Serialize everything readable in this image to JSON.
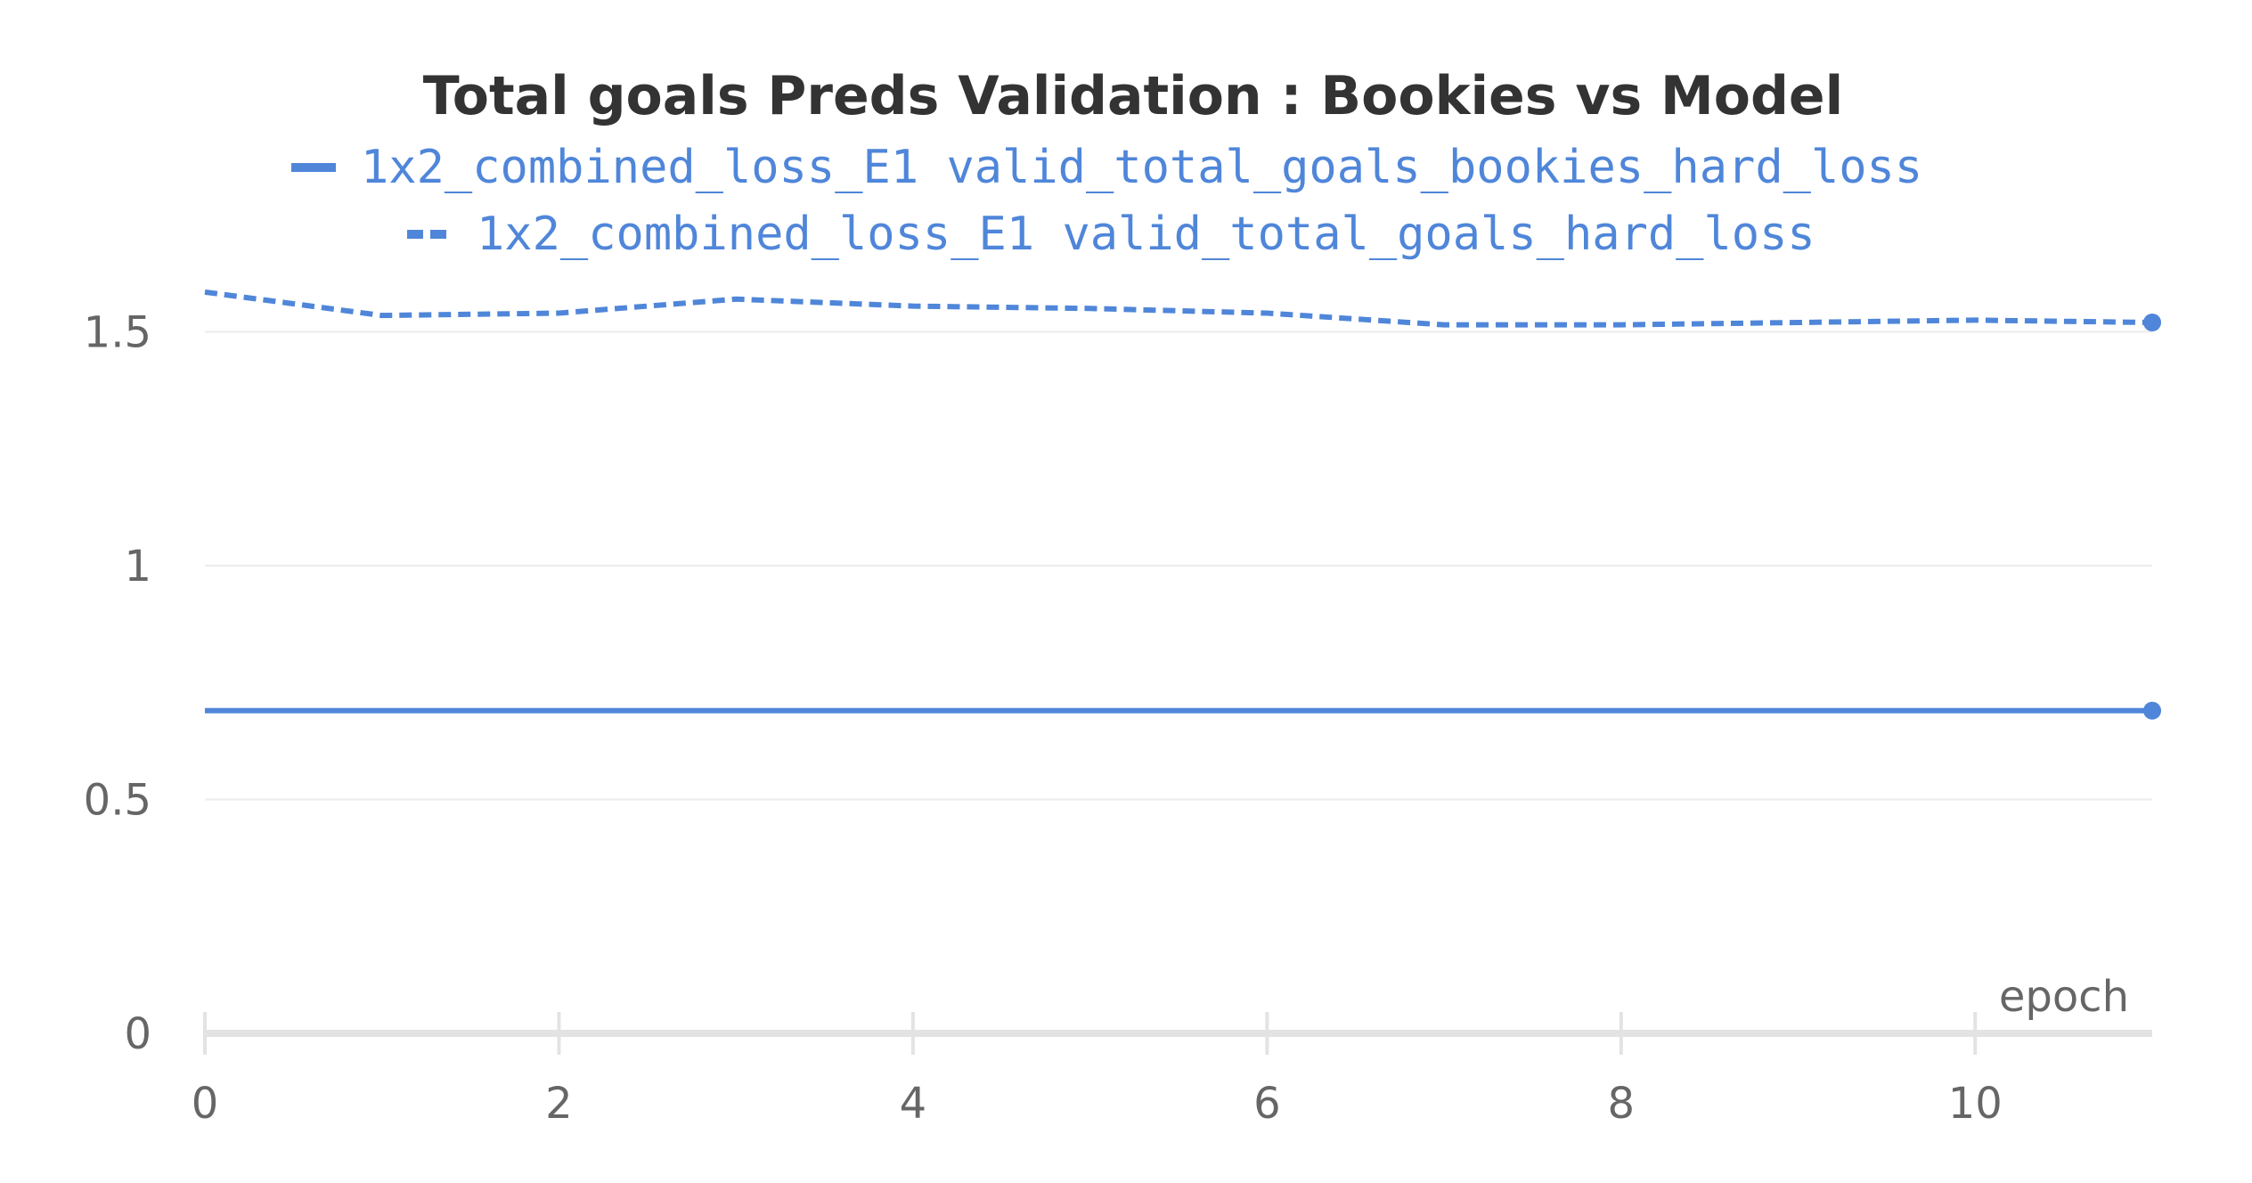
{
  "chart_data": {
    "type": "line",
    "title": "Total goals Preds Validation : Bookies vs Model",
    "xlabel": "epoch",
    "ylabel": "",
    "xlim": [
      0,
      11
    ],
    "ylim": [
      0,
      1.65
    ],
    "x_ticks": [
      0,
      2,
      4,
      6,
      8,
      10
    ],
    "y_ticks": [
      0,
      0.5,
      1,
      1.5
    ],
    "x_tick_labels": [
      "0",
      "2",
      "4",
      "6",
      "8",
      "10"
    ],
    "y_tick_labels": [
      "0",
      "0.5",
      "1",
      "1.5"
    ],
    "grid": "horizontal",
    "legend_position": "top-center",
    "series": [
      {
        "name": "1x2_combined_loss_E1 valid_total_goals_bookies_hard_loss",
        "style": "solid",
        "color": "#4f86d9",
        "x": [
          0,
          1,
          2,
          3,
          4,
          5,
          6,
          7,
          8,
          9,
          10,
          11
        ],
        "values": [
          0.69,
          0.69,
          0.69,
          0.69,
          0.69,
          0.69,
          0.69,
          0.69,
          0.69,
          0.69,
          0.69,
          0.69
        ]
      },
      {
        "name": "1x2_combined_loss_E1 valid_total_goals_hard_loss",
        "style": "dashed",
        "color": "#4f86d9",
        "x": [
          0,
          1,
          2,
          3,
          4,
          5,
          6,
          7,
          8,
          9,
          10,
          11
        ],
        "values": [
          1.585,
          1.535,
          1.54,
          1.57,
          1.555,
          1.55,
          1.54,
          1.515,
          1.515,
          1.52,
          1.525,
          1.52
        ]
      }
    ]
  }
}
